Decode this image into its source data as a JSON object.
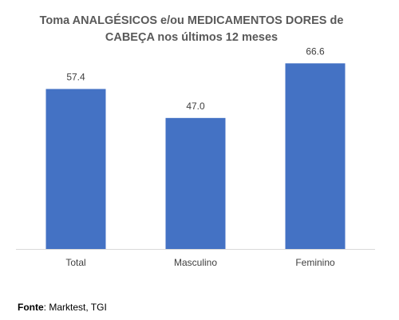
{
  "chart_data": {
    "type": "bar",
    "title_lines": [
      "Toma ANALGÉSICOS e/ou MEDICAMENTOS DORES de",
      "CABEÇA nos últimos 12 meses"
    ],
    "categories": [
      "Total",
      "Masculino",
      "Feminino"
    ],
    "values": [
      57.4,
      47.0,
      66.6
    ],
    "value_labels": [
      "57.4",
      "47.0",
      "66.6"
    ],
    "ylim": [
      0,
      71
    ],
    "grid": false,
    "legend": "none",
    "xlabel": "",
    "ylabel": "",
    "bar_color": "#4472C4",
    "axis_color": "#D9D9D9",
    "label_color": "#404040"
  },
  "source": {
    "label": "Fonte",
    "text": ": Marktest, TGI"
  }
}
